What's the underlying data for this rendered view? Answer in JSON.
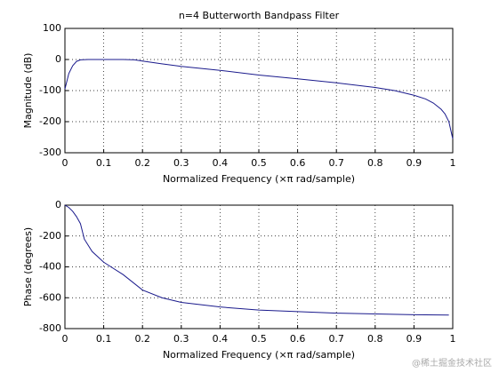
{
  "chart_data": [
    {
      "type": "line",
      "title": "n=4 Butterworth Bandpass Filter",
      "xlabel": "Normalized Frequency  (×π rad/sample)",
      "ylabel": "Magnitude (dB)",
      "x": [
        0,
        0.01,
        0.02,
        0.03,
        0.04,
        0.06,
        0.1,
        0.15,
        0.18,
        0.2,
        0.25,
        0.3,
        0.4,
        0.5,
        0.6,
        0.7,
        0.8,
        0.85,
        0.9,
        0.93,
        0.95,
        0.97,
        0.98,
        0.99,
        1.0
      ],
      "values": [
        -95,
        -45,
        -20,
        -6,
        -1,
        0,
        0,
        0,
        -1,
        -5,
        -14,
        -22,
        -35,
        -50,
        -62,
        -75,
        -90,
        -100,
        -115,
        -127,
        -140,
        -160,
        -175,
        -200,
        -255
      ],
      "color": "#1a1a8c",
      "xlim": [
        0,
        1
      ],
      "ylim": [
        -300,
        100
      ],
      "xticks": [
        0,
        0.1,
        0.2,
        0.3,
        0.4,
        0.5,
        0.6,
        0.7,
        0.8,
        0.9,
        1
      ],
      "yticks": [
        100,
        0,
        -100,
        -200,
        -300
      ],
      "grid": true
    },
    {
      "type": "line",
      "xlabel": "Normalized Frequency  (×π rad/sample)",
      "ylabel": "Phase (degrees)",
      "x": [
        0,
        0.01,
        0.02,
        0.03,
        0.04,
        0.05,
        0.07,
        0.1,
        0.15,
        0.2,
        0.25,
        0.3,
        0.4,
        0.5,
        0.6,
        0.7,
        0.8,
        0.9,
        0.99
      ],
      "values": [
        0,
        -15,
        -40,
        -75,
        -120,
        -220,
        -300,
        -370,
        -450,
        -550,
        -600,
        -630,
        -660,
        -680,
        -690,
        -700,
        -705,
        -710,
        -712
      ],
      "color": "#1a1a8c",
      "xlim": [
        0,
        1
      ],
      "ylim": [
        -800,
        0
      ],
      "xticks": [
        0,
        0.1,
        0.2,
        0.3,
        0.4,
        0.5,
        0.6,
        0.7,
        0.8,
        0.9,
        1
      ],
      "yticks": [
        0,
        -200,
        -400,
        -600,
        -800
      ],
      "grid": true
    }
  ],
  "watermark": "@稀土掘金技术社区"
}
